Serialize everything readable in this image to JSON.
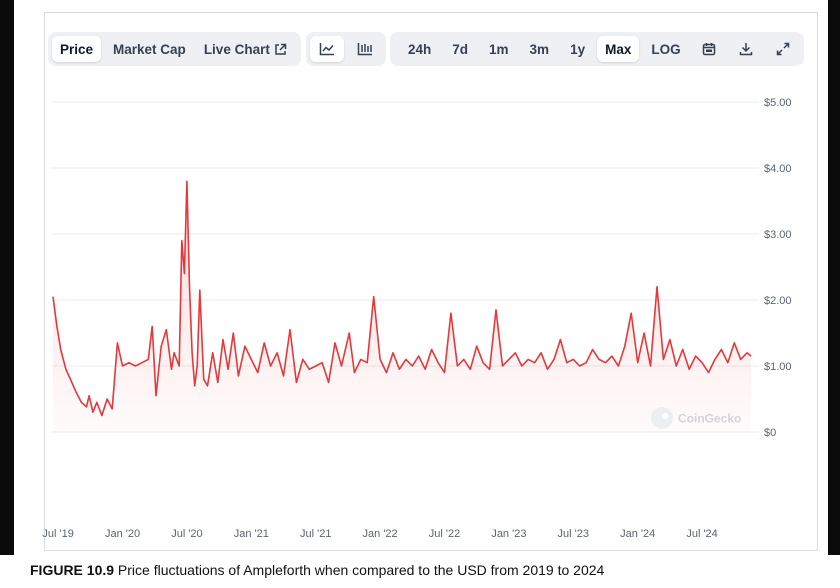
{
  "toolbar": {
    "left_tabs": [
      {
        "label": "Price",
        "active": true
      },
      {
        "label": "Market Cap",
        "active": false
      },
      {
        "label": "Live Chart",
        "active": false,
        "icon": "external-link-icon"
      }
    ],
    "view_icons": [
      {
        "icon": "line-chart-icon",
        "active": true
      },
      {
        "icon": "candlestick-chart-icon",
        "active": false
      }
    ],
    "ranges": [
      {
        "label": "24h",
        "active": false
      },
      {
        "label": "7d",
        "active": false
      },
      {
        "label": "1m",
        "active": false
      },
      {
        "label": "3m",
        "active": false
      },
      {
        "label": "1y",
        "active": false
      },
      {
        "label": "Max",
        "active": true
      },
      {
        "label": "LOG",
        "active": false
      }
    ],
    "tool_icons": [
      "calendar-icon",
      "download-icon",
      "expand-icon"
    ]
  },
  "watermark": "CoinGecko",
  "caption": {
    "label": "FIGURE 10.9",
    "text": "Price fluctuations of Ampleforth when compared to the USD from 2019 to 2024"
  },
  "chart_data": {
    "type": "area",
    "title": "",
    "xlabel": "",
    "ylabel": "",
    "y_ticks": [
      "$0",
      "$1.00",
      "$2.00",
      "$3.00",
      "$4.00",
      "$5.00"
    ],
    "y_tick_values": [
      0,
      1,
      2,
      3,
      4,
      5
    ],
    "ylim": [
      0,
      5
    ],
    "x_ticks": [
      "Jul '19",
      "Jan '20",
      "Jul '20",
      "Jan '21",
      "Jul '21",
      "Jan '22",
      "Jul '22",
      "Jan '23",
      "Jul '23",
      "Jan '24",
      "Jul '24"
    ],
    "x_tick_values": [
      2019.5,
      2020.0,
      2020.5,
      2021.0,
      2021.5,
      2022.0,
      2022.5,
      2023.0,
      2023.5,
      2024.0,
      2024.5
    ],
    "xlim": [
      2019.46,
      2024.88
    ],
    "grid": true,
    "line_color": "#e5383b",
    "series": [
      {
        "x": [
          2019.46,
          2019.49,
          2019.52,
          2019.56,
          2019.6,
          2019.64,
          2019.68,
          2019.72,
          2019.74,
          2019.77,
          2019.8,
          2019.84,
          2019.88,
          2019.92,
          2019.96,
          2020.0,
          2020.05,
          2020.1,
          2020.15,
          2020.2,
          2020.23,
          2020.26,
          2020.3,
          2020.34,
          2020.38,
          2020.4,
          2020.44,
          2020.46,
          2020.48,
          2020.5,
          2020.52,
          2020.54,
          2020.56,
          2020.58,
          2020.6,
          2020.63,
          2020.66,
          2020.7,
          2020.74,
          2020.78,
          2020.82,
          2020.86,
          2020.9,
          2020.95,
          2021.0,
          2021.05,
          2021.1,
          2021.15,
          2021.2,
          2021.25,
          2021.3,
          2021.35,
          2021.4,
          2021.45,
          2021.5,
          2021.55,
          2021.6,
          2021.65,
          2021.7,
          2021.76,
          2021.8,
          2021.85,
          2021.9,
          2021.95,
          2022.0,
          2022.05,
          2022.1,
          2022.15,
          2022.2,
          2022.25,
          2022.3,
          2022.35,
          2022.4,
          2022.45,
          2022.5,
          2022.55,
          2022.6,
          2022.65,
          2022.7,
          2022.75,
          2022.8,
          2022.85,
          2022.9,
          2022.95,
          2023.0,
          2023.05,
          2023.1,
          2023.15,
          2023.2,
          2023.25,
          2023.3,
          2023.35,
          2023.4,
          2023.45,
          2023.5,
          2023.55,
          2023.6,
          2023.65,
          2023.7,
          2023.75,
          2023.8,
          2023.85,
          2023.9,
          2023.95,
          2024.0,
          2024.05,
          2024.1,
          2024.15,
          2024.2,
          2024.25,
          2024.3,
          2024.35,
          2024.4,
          2024.45,
          2024.5,
          2024.55,
          2024.6,
          2024.65,
          2024.7,
          2024.75,
          2024.8,
          2024.85,
          2024.88
        ],
        "y": [
          2.05,
          1.6,
          1.25,
          0.95,
          0.78,
          0.6,
          0.45,
          0.38,
          0.55,
          0.3,
          0.45,
          0.25,
          0.5,
          0.35,
          1.35,
          1.0,
          1.05,
          1.0,
          1.05,
          1.1,
          1.6,
          0.55,
          1.3,
          1.55,
          0.95,
          1.2,
          1.0,
          2.9,
          2.4,
          3.8,
          2.2,
          1.2,
          0.7,
          1.0,
          2.15,
          0.8,
          0.7,
          1.2,
          0.75,
          1.4,
          0.95,
          1.5,
          0.85,
          1.3,
          1.1,
          0.9,
          1.35,
          1.0,
          1.2,
          0.85,
          1.55,
          0.75,
          1.1,
          0.95,
          1.0,
          1.05,
          0.75,
          1.35,
          1.0,
          1.5,
          0.9,
          1.1,
          1.05,
          2.05,
          1.1,
          0.9,
          1.2,
          0.95,
          1.1,
          1.0,
          1.15,
          0.95,
          1.25,
          1.05,
          0.9,
          1.8,
          1.0,
          1.1,
          0.95,
          1.3,
          1.05,
          0.95,
          1.85,
          1.0,
          1.1,
          1.2,
          1.0,
          1.1,
          1.05,
          1.2,
          0.95,
          1.1,
          1.4,
          1.05,
          1.1,
          1.0,
          1.05,
          1.25,
          1.1,
          1.05,
          1.15,
          1.0,
          1.3,
          1.8,
          1.05,
          1.5,
          1.0,
          2.2,
          1.1,
          1.4,
          1.0,
          1.25,
          0.95,
          1.15,
          1.05,
          0.9,
          1.1,
          1.25,
          1.05,
          1.35,
          1.1,
          1.2,
          1.15
        ]
      }
    ]
  }
}
